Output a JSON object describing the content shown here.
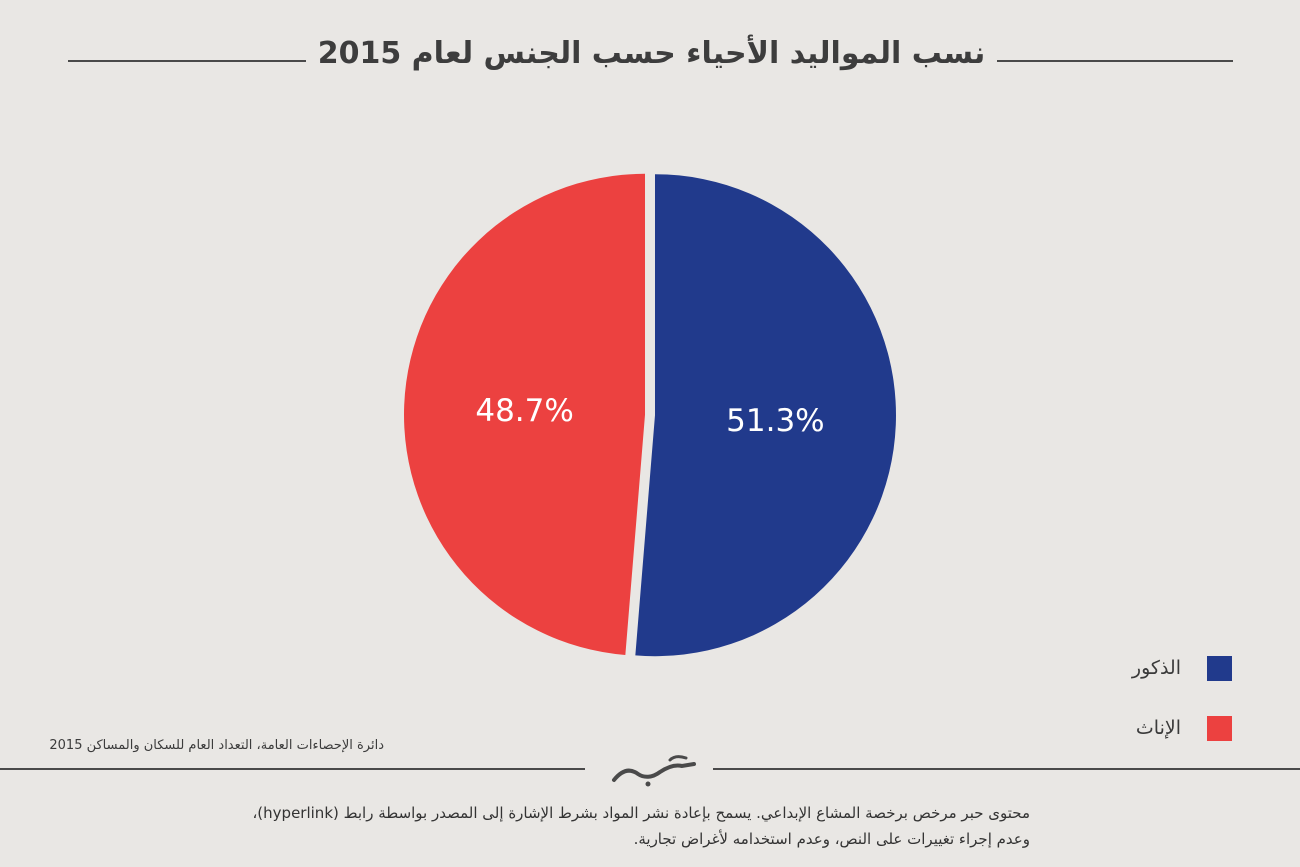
{
  "header": {
    "title": "نسب المواليد الأحياء حسب الجنس لعام 2015"
  },
  "chart_data": {
    "type": "pie",
    "title": "نسب المواليد الأحياء حسب الجنس لعام 2015",
    "slices": [
      {
        "label": "الذكور",
        "value": 51.3,
        "display": "51.3%",
        "color": "#213a8c"
      },
      {
        "label": "الإناث",
        "value": 48.7,
        "display": "48.7%",
        "color": "#ec4140"
      }
    ],
    "legend_position": "bottom-right"
  },
  "legend": {
    "items": [
      {
        "label": "الذكور",
        "color": "#213a8c"
      },
      {
        "label": "الإناث",
        "color": "#ec4140"
      }
    ]
  },
  "source": "دائرة الإحصاءات العامة، التعداد العام للسكان والمساكن 2015",
  "license": {
    "line1": "محتوى حبر مرخص برخصة المشاع الإبداعي. يسمح بإعادة نشر المواد بشرط الإشارة إلى المصدر بواسطة رابط (hyperlink)،",
    "line2": "وعدم إجراء تغييرات على النص، وعدم استخدامه لأغراض تجارية."
  },
  "logo": {
    "icon": "hibr-logo-icon"
  }
}
